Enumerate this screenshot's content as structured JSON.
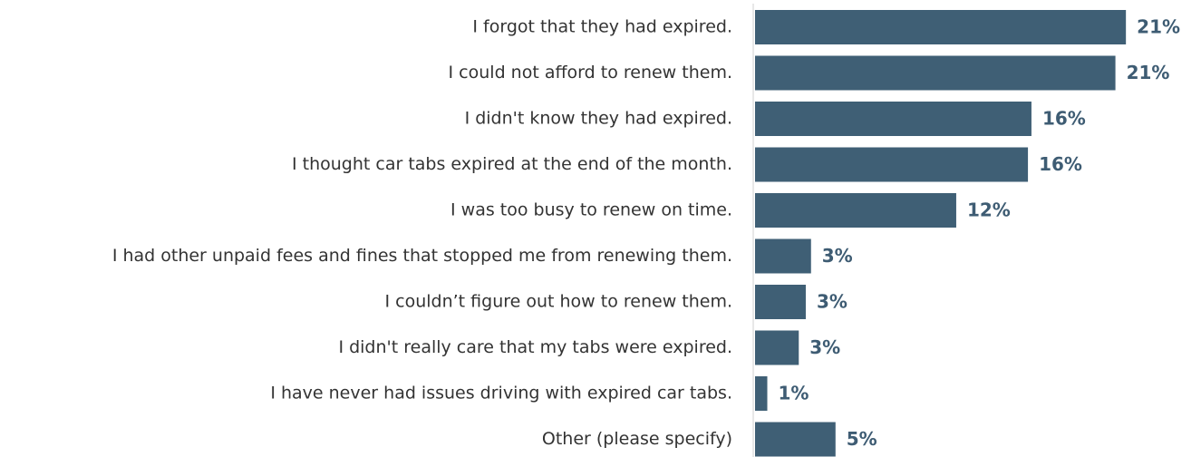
{
  "chart_data": {
    "type": "bar",
    "orientation": "horizontal",
    "categories": [
      "I forgot that they had expired.",
      "I could not afford to renew them.",
      "I didn't know they had expired.",
      "I thought car tabs expired at the end of the month.",
      "I was too busy to renew on time.",
      "I had other unpaid fees and fines that stopped me from renewing them.",
      "I couldn’t figure out how to renew them.",
      "I didn't really care that my tabs were expired.",
      "I have never had issues driving with expired car tabs.",
      "Other (please specify)"
    ],
    "values": [
      21.2,
      20.6,
      15.8,
      15.6,
      11.5,
      3.2,
      2.9,
      2.5,
      0.7,
      4.6
    ],
    "value_labels": [
      "21%",
      "21%",
      "16%",
      "16%",
      "12%",
      "3%",
      "3%",
      "3%",
      "1%",
      "5%"
    ],
    "color": "#3f5f75"
  }
}
